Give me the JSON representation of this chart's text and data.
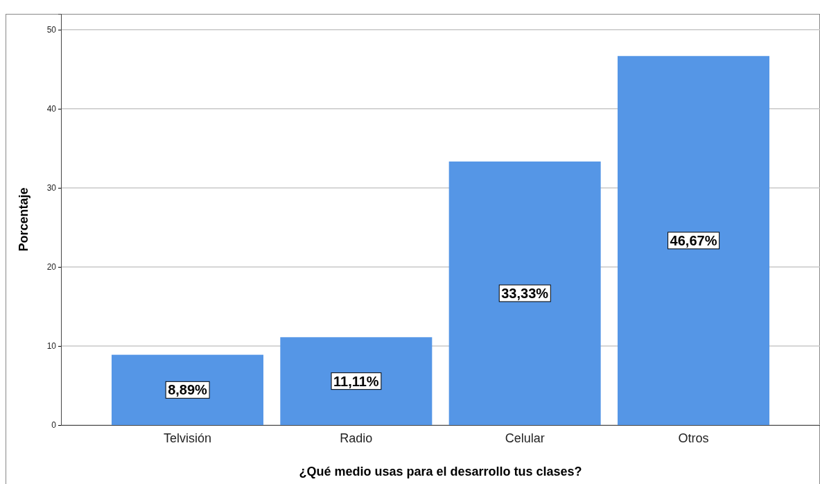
{
  "chart_data": {
    "type": "bar",
    "xlabel": "¿Qué medio usas para el desarrollo tus clases?",
    "ylabel": "Porcentaje",
    "categories": [
      "Telvisión",
      "Radio",
      "Celular",
      "Otros"
    ],
    "values": [
      8.89,
      11.11,
      33.33,
      46.67
    ],
    "value_labels": [
      "8,89%",
      "11,11%",
      "33,33%",
      "46,67%"
    ],
    "color": "#5596e6",
    "ylim": [
      0,
      52
    ],
    "yticks": [
      0,
      10,
      20,
      30,
      40,
      50
    ],
    "grid": "y"
  }
}
